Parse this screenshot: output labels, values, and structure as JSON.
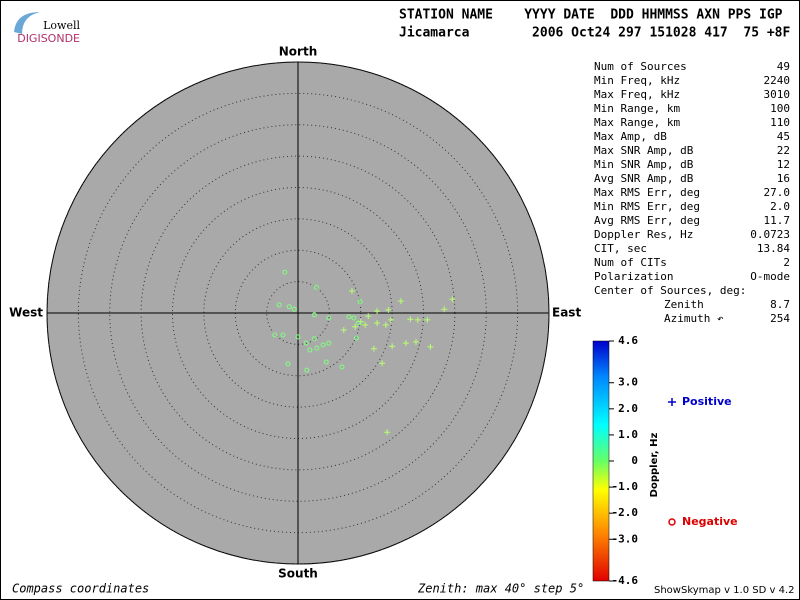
{
  "logo": {
    "top": "Lowell",
    "bottom": "DIGISONDE"
  },
  "header": {
    "line1": "STATION NAME    YYYY DATE  DDD HHMMSS AXN PPS IGP",
    "line2": "Jicamarca        2006 Oct24 297 151028 417  75 +8F"
  },
  "stats": [
    [
      "Num of Sources",
      "49"
    ],
    [
      "Min Freq, kHz",
      "2240"
    ],
    [
      "Max Freq, kHz",
      "3010"
    ],
    [
      "Min Range, km",
      "100"
    ],
    [
      "Max Range, km",
      "110"
    ],
    [
      "Max Amp, dB",
      "45"
    ],
    [
      "Max SNR Amp, dB",
      "22"
    ],
    [
      "Min SNR Amp, dB",
      "12"
    ],
    [
      "Avg SNR Amp, dB",
      "16"
    ],
    [
      "Max RMS Err, deg",
      "27.0"
    ],
    [
      "Min RMS Err, deg",
      "2.0"
    ],
    [
      "Avg RMS Err, deg",
      "11.7"
    ],
    [
      "Doppler Res, Hz",
      "0.0723"
    ],
    [
      "CIT, sec",
      "13.84"
    ],
    [
      "Num of CITs",
      "2"
    ],
    [
      "Polarization",
      "O-mode"
    ]
  ],
  "center": {
    "title": "Center of Sources, deg:",
    "zenith_label": "Zenith",
    "zenith": "8.7",
    "azimuth_label": "Azimuth ↶",
    "azimuth": "254"
  },
  "footer": {
    "left": "Compass coordinates",
    "middle": "Zenith: max 40°  step 5°",
    "right": "ShowSkymap v 1.0  SD v 4.2"
  },
  "chart_data": {
    "type": "polar-scatter",
    "directions": {
      "north": "North",
      "south": "South",
      "east": "East",
      "west": "West"
    },
    "rlim": [
      0,
      40
    ],
    "rticks": [
      5,
      10,
      15,
      20,
      25,
      30,
      35,
      40
    ],
    "series": [
      {
        "name": "Positive",
        "color": "#0000cc",
        "marker": "plus",
        "point_color": "#b8ff70",
        "x": [
          8.6,
          12.6,
          16.4,
          14.4,
          11.2,
          10.0,
          7.3,
          9.1,
          10.7,
          14.0,
          14.8,
          17.9,
          19.1,
          20.6,
          23.3,
          24.6,
          15.0,
          12.1,
          18.8,
          21.1,
          13.4,
          14.2,
          17.2,
          12.6
        ],
        "y": [
          3.5,
          0.3,
          1.9,
          0.5,
          -0.5,
          -1.4,
          -2.7,
          -2.2,
          -1.9,
          -1.9,
          -1.1,
          -1.0,
          -1.1,
          -1.1,
          0.6,
          2.2,
          -5.3,
          -5.7,
          -4.6,
          -5.4,
          -8.0,
          -19.0,
          -4.8,
          -1.6
        ]
      },
      {
        "name": "Negative",
        "color": "#dd0000",
        "marker": "circle",
        "point_color": "#80ff80",
        "x": [
          -2.1,
          -3.0,
          -1.4,
          -0.6,
          2.9,
          2.6,
          4.9,
          8.1,
          9.9,
          8.9,
          9.6,
          -3.7,
          -2.4,
          0.0,
          1.3,
          1.9,
          3.0,
          4.0,
          4.9,
          9.3,
          -1.6,
          1.4,
          4.5,
          7.0,
          2.6
        ],
        "y": [
          6.5,
          1.3,
          1.0,
          0.6,
          4.1,
          -0.3,
          -0.8,
          -0.6,
          1.8,
          -0.8,
          -1.6,
          -3.5,
          -3.5,
          -3.8,
          -4.8,
          -5.9,
          -5.6,
          -5.1,
          -4.8,
          -4.0,
          -8.1,
          -9.1,
          -7.8,
          -8.6,
          -4.1
        ]
      }
    ],
    "colorbar": {
      "label": "Doppler, Hz",
      "lim": [
        -4.6,
        4.6
      ],
      "ticks": [
        4.6,
        {
          "value": 3,
          "label": "3.0"
        },
        {
          "value": 2,
          "label": "2.0"
        },
        {
          "value": 1,
          "label": "1.0"
        },
        0,
        {
          "value": -1,
          "label": "-1.0"
        },
        {
          "value": -2,
          "label": "-2.0"
        },
        {
          "value": -3,
          "label": "-3.0"
        },
        -4.6
      ]
    }
  }
}
